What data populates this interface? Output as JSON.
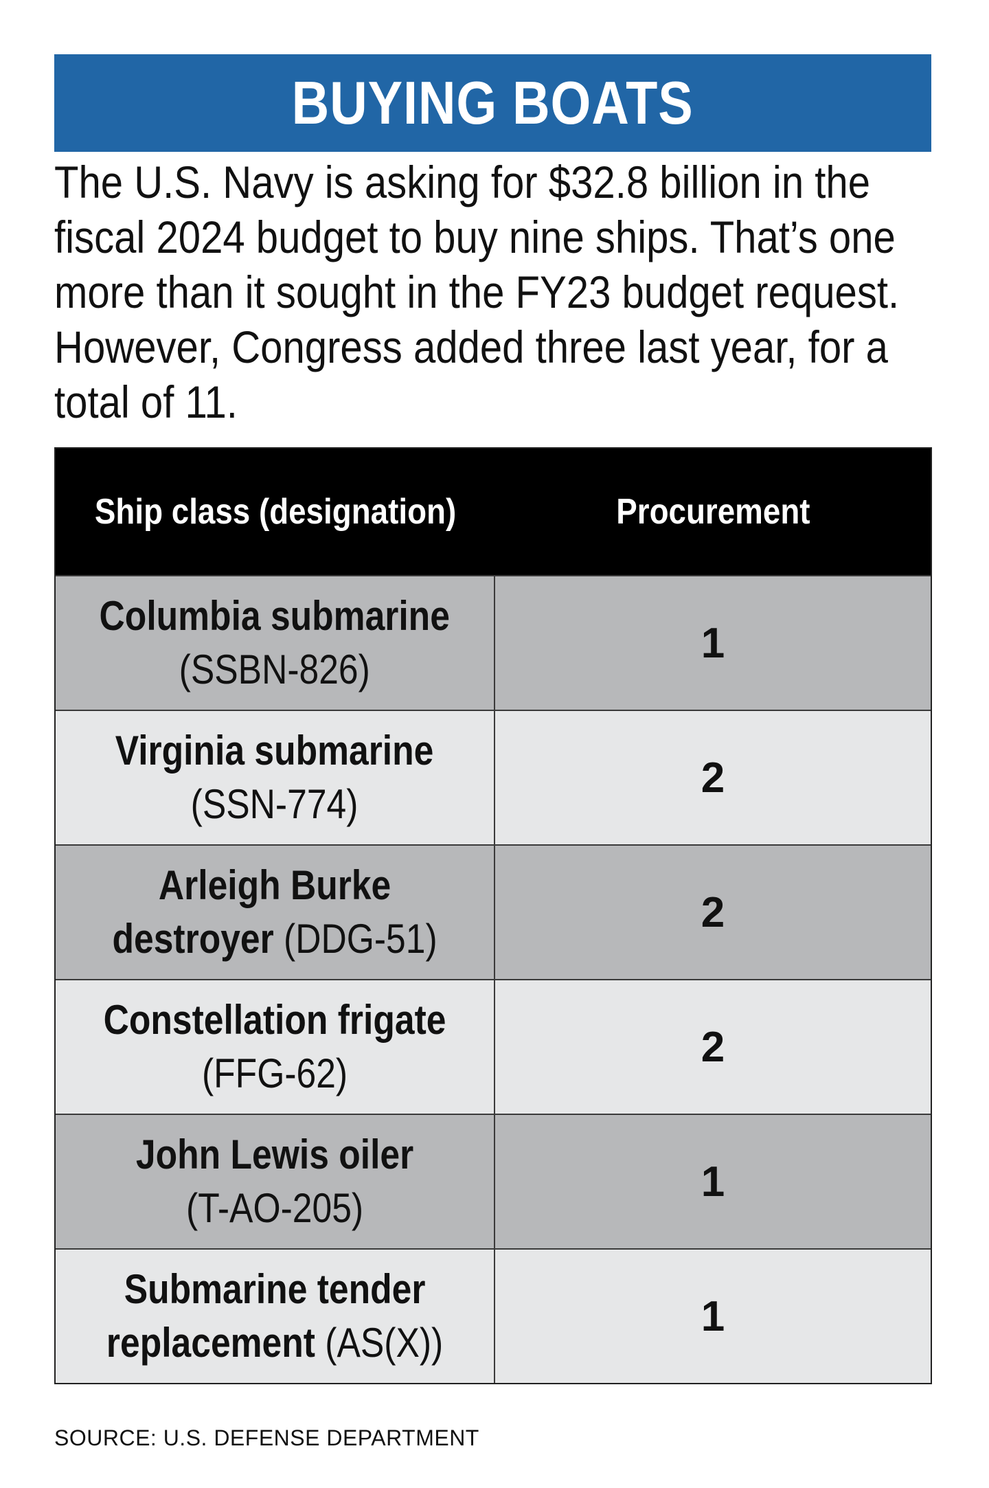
{
  "title": "BUYING BOATS",
  "intro": "The U.S. Navy is asking for $32.8 billion in the fiscal 2024 budget to buy nine ships. That’s one more than it sought in the FY23 budget request. However, Congress added three last year, for a total of 11.",
  "colors": {
    "banner": "#2166a6",
    "header_bg": "#000000",
    "row_dark": "#b7b8ba",
    "row_light": "#e6e7e8"
  },
  "chart_data": {
    "type": "table",
    "columns": [
      "Ship class (designation)",
      "Procurement"
    ],
    "rows": [
      {
        "line1": "Columbia submarine",
        "line2_bold": "",
        "line2_desig": "(SSBN-826)",
        "procurement": "1"
      },
      {
        "line1": "Virginia submarine",
        "line2_bold": "",
        "line2_desig": "(SSN-774)",
        "procurement": "2"
      },
      {
        "line1": "Arleigh Burke",
        "line2_bold": "destroyer",
        "line2_desig": "(DDG-51)",
        "procurement": "2"
      },
      {
        "line1": "Constellation frigate",
        "line2_bold": "",
        "line2_desig": "(FFG-62)",
        "procurement": "2"
      },
      {
        "line1": "John Lewis oiler",
        "line2_bold": "",
        "line2_desig": "(T-AO-205)",
        "procurement": "1"
      },
      {
        "line1": "Submarine tender",
        "line2_bold": "replacement",
        "line2_desig": "(AS(X))",
        "procurement": "1"
      }
    ]
  },
  "source": "SOURCE: U.S. DEFENSE DEPARTMENT"
}
